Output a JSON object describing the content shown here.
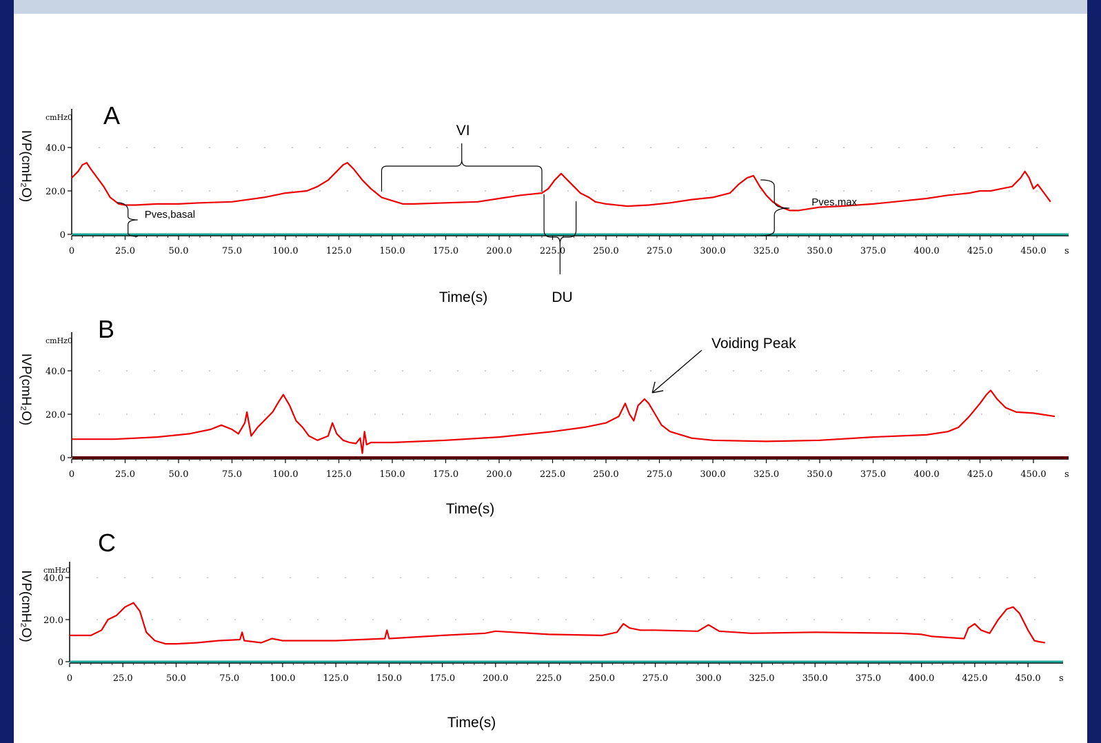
{
  "colors": {
    "trace": "#ee0000",
    "baseline_a": "#1aa89a",
    "baseline_b": "#5a0000",
    "baseline_c": "#1aa89a",
    "frame": "#111f6b",
    "background": "#c8d3e3"
  },
  "chart_data": [
    {
      "type": "line",
      "panel": "A",
      "ylabel": "IVP(cmH₂O)",
      "yunit": "cmHz0",
      "xlabel": "Time(s)",
      "xlim": [
        0,
        460
      ],
      "ylim": [
        0,
        50
      ],
      "x_ticks": [
        "0",
        "25.0",
        "50.0",
        "75.0",
        "100.0",
        "125.0",
        "150.0",
        "175.0",
        "200.0",
        "225.0",
        "250.0",
        "275.0",
        "300.0",
        "325.0",
        "350.0",
        "375.0",
        "400.0",
        "425.0",
        "450.0"
      ],
      "x_tick_suffix": "s",
      "y_ticks": [
        "0",
        "20.0",
        "40.0"
      ],
      "grid": false,
      "series": [
        {
          "x": [
            0,
            3,
            5,
            7,
            9,
            12,
            15,
            18,
            22,
            25,
            30,
            40,
            50,
            60,
            75,
            90,
            100,
            110,
            115,
            120,
            124,
            127,
            129,
            132,
            136,
            140,
            145,
            150,
            155,
            160,
            175,
            190,
            200,
            210,
            220,
            223,
            226,
            229,
            232,
            235,
            238,
            242,
            245,
            250,
            260,
            270,
            280,
            290,
            300,
            308,
            312,
            316,
            319,
            322,
            325,
            328,
            332,
            336,
            340,
            350,
            360,
            375,
            390,
            400,
            410,
            420,
            425,
            430,
            435,
            440,
            444,
            446,
            448,
            450,
            452,
            455,
            458
          ],
          "y": [
            26,
            29,
            32,
            33,
            30,
            26,
            22,
            17,
            14,
            13.5,
            13.5,
            14,
            14,
            14.5,
            15,
            17,
            19,
            20,
            22,
            25,
            29,
            32,
            33,
            30,
            25,
            21,
            17,
            15.5,
            14,
            14,
            14.5,
            15,
            16.5,
            18,
            19,
            21,
            25,
            28,
            25,
            22,
            19,
            17,
            15,
            14,
            13,
            13.5,
            14.5,
            16,
            17,
            19,
            23,
            26,
            27,
            22,
            18,
            15,
            12.5,
            11,
            11,
            12.5,
            13,
            14,
            15.5,
            16.5,
            18,
            19,
            20,
            20,
            21,
            22,
            26,
            29,
            26,
            21,
            23,
            19,
            15
          ]
        }
      ],
      "annotations": [
        {
          "text": "VI",
          "x_start": 145,
          "x_end": 220
        },
        {
          "text": "DU",
          "x_start": 221,
          "x_end": 236
        },
        {
          "text": "Pves,basal",
          "x": 27
        },
        {
          "text": "Pves,max",
          "x": 332
        }
      ]
    },
    {
      "type": "line",
      "panel": "B",
      "ylabel": "IVP(cmH₂O)",
      "yunit": "cmHz0",
      "xlabel": "Time(s)",
      "xlim": [
        0,
        460
      ],
      "ylim": [
        0,
        50
      ],
      "x_ticks": [
        "0",
        "25.0",
        "50.0",
        "75.0",
        "100.0",
        "125.0",
        "150.0",
        "175.0",
        "200.0",
        "225.0",
        "250.0",
        "275.0",
        "300.0",
        "325.0",
        "350.0",
        "375.0",
        "400.0",
        "425.0",
        "450.0"
      ],
      "x_tick_suffix": "s",
      "y_ticks": [
        "0",
        "20.0",
        "40.0"
      ],
      "grid": false,
      "series": [
        {
          "x": [
            0,
            20,
            40,
            55,
            65,
            70,
            75,
            78,
            81,
            82,
            84,
            87,
            90,
            94,
            97,
            99,
            102,
            105,
            108,
            111,
            115,
            120,
            122,
            124,
            127,
            130,
            133,
            135,
            136,
            137,
            138,
            140,
            150,
            175,
            200,
            225,
            240,
            250,
            256,
            259,
            261,
            263,
            265,
            268,
            270,
            273,
            276,
            280,
            290,
            300,
            325,
            350,
            375,
            400,
            410,
            415,
            420,
            425,
            428,
            430,
            433,
            437,
            442,
            450,
            460
          ],
          "y": [
            8.5,
            8.5,
            9.5,
            11,
            13,
            15,
            13,
            11,
            16,
            21,
            10,
            14,
            17,
            21,
            26,
            29,
            24,
            17,
            14,
            10,
            8,
            10,
            16,
            11,
            8,
            7,
            6.5,
            9,
            2,
            12,
            6,
            7,
            7,
            8,
            9.5,
            12,
            14,
            16,
            19,
            25,
            20,
            17,
            24,
            27,
            25,
            20,
            15,
            12,
            9,
            8,
            7.5,
            8,
            9.5,
            10.5,
            12,
            14,
            19,
            25,
            29,
            31,
            27,
            23,
            21,
            20.5,
            19
          ]
        }
      ],
      "annotations": [
        {
          "text": "Voiding Peak",
          "x": 271
        }
      ]
    },
    {
      "type": "line",
      "panel": "C",
      "ylabel": "IVP(cmH₂O)",
      "yunit": "cmHz0",
      "xlabel": "Time(s)",
      "xlim": [
        0,
        460
      ],
      "ylim": [
        0,
        40
      ],
      "x_ticks": [
        "0",
        "25.0",
        "50.0",
        "75.0",
        "100.0",
        "125.0",
        "150.0",
        "175.0",
        "200.0",
        "225.0",
        "250.0",
        "275.0",
        "300.0",
        "325.0",
        "350.0",
        "375.0",
        "400.0",
        "425.0",
        "450.0"
      ],
      "x_tick_suffix": "s",
      "y_ticks": [
        "0",
        "20.0",
        "40.0"
      ],
      "grid": false,
      "series": [
        {
          "x": [
            0,
            10,
            15,
            18,
            22,
            26,
            30,
            33,
            36,
            40,
            45,
            50,
            60,
            70,
            80,
            81,
            82,
            90,
            95,
            100,
            125,
            148,
            149,
            150,
            175,
            195,
            200,
            225,
            250,
            257,
            260,
            263,
            268,
            275,
            295,
            300,
            305,
            320,
            350,
            390,
            400,
            405,
            420,
            422,
            425,
            428,
            432,
            436,
            440,
            443,
            446,
            450,
            453,
            455,
            458
          ],
          "y": [
            12.5,
            12.5,
            15,
            20,
            22,
            26,
            28,
            24,
            14,
            10,
            8.5,
            8.5,
            9,
            10,
            10.5,
            14,
            10,
            9,
            11,
            10,
            10,
            11,
            15,
            11,
            12.5,
            13.5,
            14.5,
            13,
            12.5,
            14,
            18,
            16,
            15,
            15,
            14.5,
            17.5,
            14.5,
            13.5,
            14,
            13.5,
            13,
            12,
            11,
            16,
            18,
            15,
            13.5,
            20,
            25,
            26,
            23,
            15,
            10,
            9.5,
            9
          ]
        }
      ],
      "annotations": []
    }
  ]
}
